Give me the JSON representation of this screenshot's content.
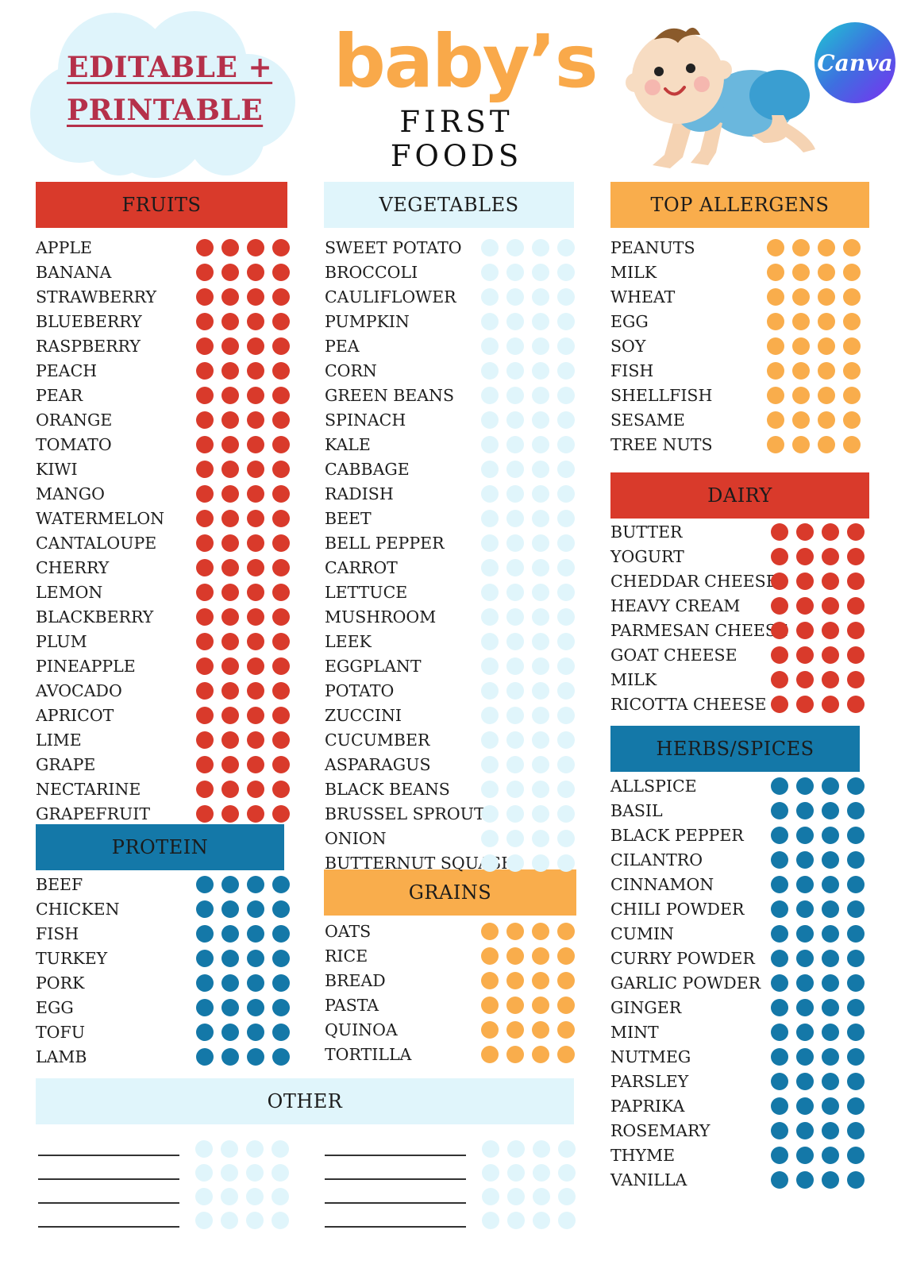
{
  "header": {
    "badge_line1": "EDITABLE +",
    "badge_line2": "PRINTABLE",
    "title_main": "baby’s",
    "title_sub": "FIRST FOODS",
    "brand_badge": "Canva"
  },
  "colors": {
    "red": "#d93a2b",
    "light_blue": "#e0f5fb",
    "orange": "#f9ad4c",
    "blue": "#1478a8",
    "badge_text": "#b5304a",
    "title_orange": "#f9a94a"
  },
  "sections": {
    "fruits": {
      "title": "FRUITS",
      "items": [
        "APPLE",
        "BANANA",
        "STRAWBERRY",
        "BLUEBERRY",
        "RASPBERRY",
        "PEACH",
        "PEAR",
        "ORANGE",
        "TOMATO",
        "KIWI",
        "MANGO",
        "WATERMELON",
        "CANTALOUPE",
        "CHERRY",
        "LEMON",
        "BLACKBERRY",
        "PLUM",
        "PINEAPPLE",
        "AVOCADO",
        "APRICOT",
        "LIME",
        "GRAPE",
        "NECTARINE",
        "GRAPEFRUIT"
      ]
    },
    "protein": {
      "title": "PROTEIN",
      "items": [
        "BEEF",
        "CHICKEN",
        "FISH",
        "TURKEY",
        "PORK",
        "EGG",
        "TOFU",
        "LAMB"
      ]
    },
    "vegetables": {
      "title": "VEGETABLES",
      "items": [
        "SWEET POTATO",
        "BROCCOLI",
        "CAULIFLOWER",
        "PUMPKIN",
        "PEA",
        "CORN",
        "GREEN BEANS",
        "SPINACH",
        "KALE",
        "CABBAGE",
        "RADISH",
        "BEET",
        "BELL PEPPER",
        "CARROT",
        "LETTUCE",
        "MUSHROOM",
        "LEEK",
        "EGGPLANT",
        "POTATO",
        "ZUCCINI",
        "CUCUMBER",
        "ASPARAGUS",
        "BLACK BEANS",
        "BRUSSEL SPROUTS",
        "ONION",
        "BUTTERNUT SQUASH"
      ]
    },
    "grains": {
      "title": "GRAINS",
      "items": [
        "OATS",
        "RICE",
        "BREAD",
        "PASTA",
        "QUINOA",
        "TORTILLA"
      ]
    },
    "allergens": {
      "title": "TOP ALLERGENS",
      "items": [
        "PEANUTS",
        "MILK",
        "WHEAT",
        "EGG",
        "SOY",
        "FISH",
        "SHELLFISH",
        "SESAME",
        "TREE NUTS"
      ]
    },
    "dairy": {
      "title": "DAIRY",
      "items": [
        "BUTTER",
        "YOGURT",
        "CHEDDAR CHEESE",
        "HEAVY CREAM",
        "PARMESAN CHEESE",
        "GOAT CHEESE",
        "MILK",
        "RICOTTA CHEESE"
      ]
    },
    "herbs": {
      "title": "HERBS/SPICES",
      "items": [
        "ALLSPICE",
        "BASIL",
        "BLACK PEPPER",
        "CILANTRO",
        "CINNAMON",
        "CHILI POWDER",
        "CUMIN",
        "CURRY POWDER",
        "GARLIC POWDER",
        "GINGER",
        "MINT",
        "NUTMEG",
        "PARSLEY",
        "PAPRIKA",
        "ROSEMARY",
        "THYME",
        "VANILLA"
      ]
    },
    "other": {
      "title": "OTHER",
      "blank_rows": 4
    }
  }
}
